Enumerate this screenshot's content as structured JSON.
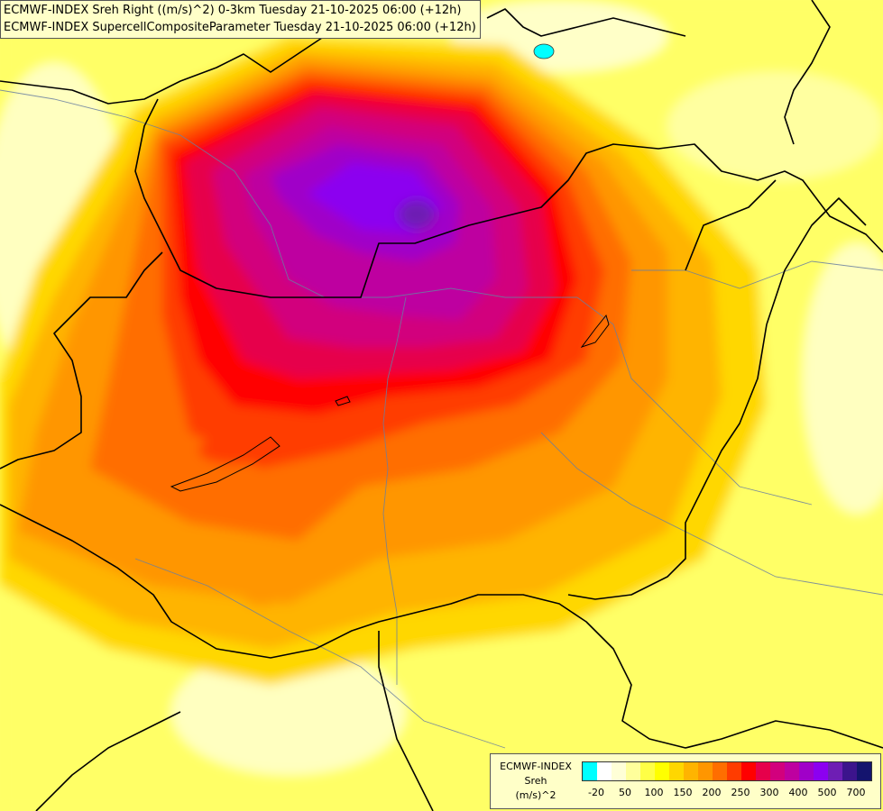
{
  "title_lines": [
    "ECMWF-INDEX Sreh Right ((m/s)^2) 0-3km Tuesday 21-10-2025 06:00 (+12h)",
    "ECMWF-INDEX SupercellCompositeParameter Tuesday 21-10-2025 06:00 (+12h)"
  ],
  "legend": {
    "caption_lines": [
      "ECMWF-INDEX",
      "Sreh",
      "(m/s)^2"
    ],
    "colors": [
      "#00ffff",
      "#ffffff",
      "#ffffd7",
      "#ffff9b",
      "#ffff46",
      "#ffff00",
      "#ffd700",
      "#ffb400",
      "#ff9600",
      "#ff6e00",
      "#ff3c00",
      "#ff0000",
      "#e6004b",
      "#d2007d",
      "#be00a0",
      "#a000c8",
      "#8c00f0",
      "#6e1eb4",
      "#3c148c",
      "#14146e"
    ],
    "tick_labels": [
      "-20",
      "50",
      "100",
      "150",
      "200",
      "250",
      "300",
      "400",
      "500",
      "700"
    ]
  }
}
